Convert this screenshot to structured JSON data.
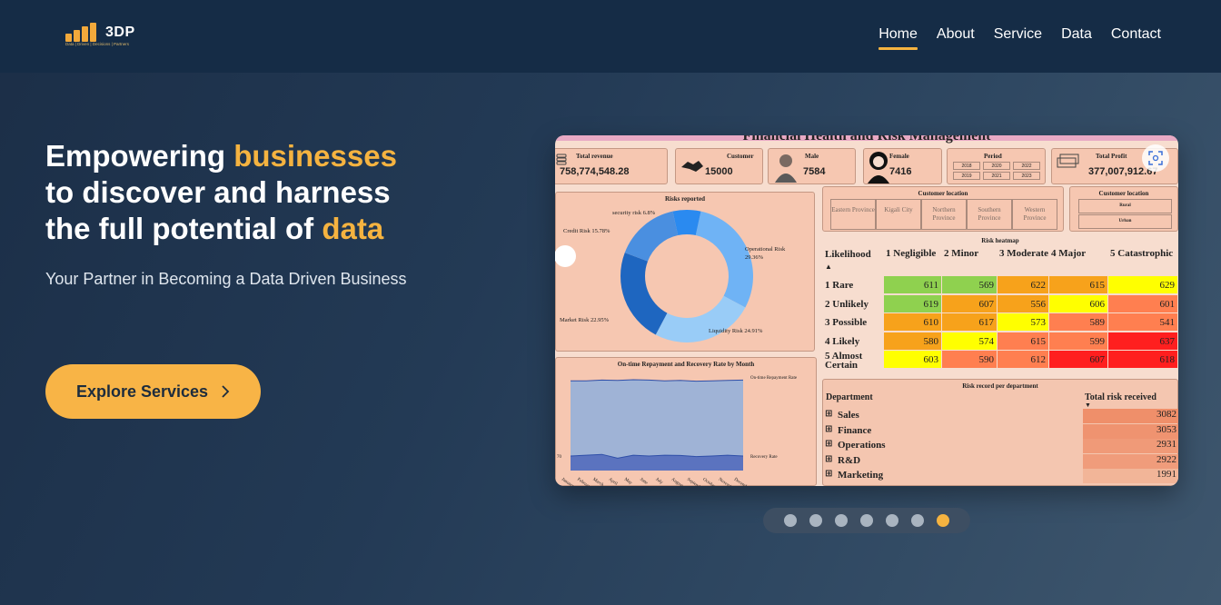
{
  "logo": {
    "text": "3DP",
    "tagline": "Data | Driven | Decisions | Partners"
  },
  "nav": [
    {
      "label": "Home",
      "active": true
    },
    {
      "label": "About"
    },
    {
      "label": "Service"
    },
    {
      "label": "Data"
    },
    {
      "label": "Contact"
    }
  ],
  "hero": {
    "line1_a": "Empowering ",
    "line1_b": "businesses",
    "line2": "to discover and harness",
    "line3_a": "the full potential of ",
    "line3_b": "data",
    "subtitle": "Your Partner in Becoming a Data Driven Business",
    "cta_label": "Explore Services"
  },
  "dashboard": {
    "title": "Financial Health and Risk Management",
    "kpis": [
      {
        "label": "Total revenue",
        "value": "758,774,548.28"
      },
      {
        "label": "Customer",
        "value": "15000"
      },
      {
        "label": "Male",
        "value": "7584"
      },
      {
        "label": "Female",
        "value": "7416"
      },
      {
        "label": "Period",
        "years": [
          "2018",
          "2020",
          "2022",
          "2019",
          "2021",
          "2023"
        ]
      },
      {
        "label": "Total Profit",
        "value": "377,007,912.67"
      }
    ],
    "customer_location_title": "Customer location",
    "provinces": [
      "Eastern Province",
      "Kigali City",
      "Northern Province",
      "Southern Province",
      "Western Province"
    ],
    "location_types": [
      "Rural",
      "Urban"
    ],
    "donut": {
      "title": "Risks reported",
      "slices": [
        {
          "name": "Operational Risk 29.36%",
          "value": 29.36,
          "color": "#6fb3f5"
        },
        {
          "name": "Liquidity Risk 24.91%",
          "value": 24.91,
          "color": "#99ccf7"
        },
        {
          "name": "Market Risk 22.95%",
          "value": 22.95,
          "color": "#1e66c0"
        },
        {
          "name": "Credit Risk 15.78%",
          "value": 15.78,
          "color": "#4a8fe0"
        },
        {
          "name": "security risk 6.8%",
          "value": 6.8,
          "color": "#2a8af0"
        }
      ]
    },
    "area": {
      "title": "On-time Repayment and Recovery Rate by Month",
      "series1": "On-time Repayment Rate",
      "series2": "Recovery Rate",
      "y1": "70",
      "months": [
        "January",
        "February",
        "March",
        "April",
        "May",
        "June",
        "July",
        "August",
        "September",
        "October",
        "November",
        "December"
      ]
    },
    "heatmap": {
      "title": "Risk heatmap",
      "corner": "Likelihood",
      "columns": [
        "1 Negligible",
        "2 Minor",
        "3 Moderate",
        "4 Major",
        "5 Catastrophic"
      ],
      "rows": [
        {
          "label": "1 Rare",
          "values": [
            "611",
            "569",
            "622",
            "615",
            "629"
          ]
        },
        {
          "label": "2 Unlikely",
          "values": [
            "619",
            "607",
            "556",
            "606",
            "601"
          ]
        },
        {
          "label": "3 Possible",
          "values": [
            "610",
            "617",
            "573",
            "589",
            "541"
          ]
        },
        {
          "label": "4 Likely",
          "values": [
            "580",
            "574",
            "615",
            "599",
            "637"
          ]
        },
        {
          "label": "5 Almost Certain",
          "values": [
            "603",
            "590",
            "612",
            "607",
            "618"
          ]
        }
      ],
      "colors": [
        [
          "#8fd14f",
          "#8fd14f",
          "#f7a21b",
          "#f7a21b",
          "#ffff00"
        ],
        [
          "#8fd14f",
          "#f7a21b",
          "#f7a21b",
          "#ffff00",
          "#ff7f50"
        ],
        [
          "#f7a21b",
          "#f7a21b",
          "#ffff00",
          "#ff7f50",
          "#ff7f50"
        ],
        [
          "#f7a21b",
          "#ffff00",
          "#ff7f50",
          "#ff7f50",
          "#ff1f1f"
        ],
        [
          "#ffff00",
          "#ff7f50",
          "#ff7f50",
          "#ff1f1f",
          "#ff1f1f"
        ]
      ]
    },
    "departments": {
      "title": "Risk record per department",
      "col1": "Department",
      "col2": "Total risk received",
      "rows": [
        {
          "name": "Sales",
          "value": "3082"
        },
        {
          "name": "Finance",
          "value": "3053"
        },
        {
          "name": "Operations",
          "value": "2931"
        },
        {
          "name": "R&D",
          "value": "2922"
        },
        {
          "name": "Marketing",
          "value": "1991"
        }
      ]
    }
  },
  "carousel": {
    "count": 7,
    "active": 6
  }
}
